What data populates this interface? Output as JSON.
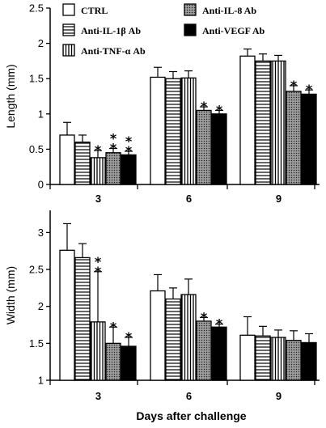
{
  "chart_data": [
    {
      "type": "bar",
      "ylabel": "Length (mm)",
      "xlabel": "",
      "ylim": [
        0,
        2.5
      ],
      "yticks": [
        "0",
        "0.5",
        "1",
        "1.5",
        "2",
        "2.5"
      ],
      "categories": [
        "3",
        "6",
        "9"
      ],
      "series": [
        {
          "name": "CTRL",
          "pattern": "white",
          "values": [
            0.7,
            1.52,
            1.82
          ],
          "errors": [
            0.18,
            0.14,
            0.1
          ]
        },
        {
          "name": "Anti-IL-1β Ab",
          "pattern": "hlines",
          "values": [
            0.6,
            1.5,
            1.75
          ],
          "errors": [
            0.1,
            0.1,
            0.1
          ]
        },
        {
          "name": "Anti-TNF-α Ab",
          "pattern": "vlines",
          "values": [
            0.38,
            1.51,
            1.75
          ],
          "errors": [
            0.1,
            0.1,
            0.08
          ]
        },
        {
          "name": "Anti-IL-8 Ab",
          "pattern": "dots",
          "values": [
            0.45,
            1.05,
            1.32
          ],
          "errors": [
            0.06,
            0.05,
            0.08
          ]
        },
        {
          "name": "Anti-VEGF Ab",
          "pattern": "black",
          "values": [
            0.42,
            1.0,
            1.28
          ],
          "errors": [
            0.05,
            0.05,
            0.06
          ]
        }
      ],
      "significance": [
        {
          "category": 0,
          "series": 2,
          "stars": "*"
        },
        {
          "category": 0,
          "series": 3,
          "stars": "**"
        },
        {
          "category": 0,
          "series": 4,
          "stars": "**"
        },
        {
          "category": 1,
          "series": 3,
          "stars": "*"
        },
        {
          "category": 1,
          "series": 4,
          "stars": "*"
        },
        {
          "category": 2,
          "series": 3,
          "stars": "*"
        },
        {
          "category": 2,
          "series": 4,
          "stars": "*"
        }
      ],
      "legend": "top-left, inside plot"
    },
    {
      "type": "bar",
      "ylabel": "Width (mm)",
      "xlabel": "Days after challenge",
      "ylim": [
        1,
        3.3
      ],
      "yticks": [
        "1",
        "1.5",
        "2",
        "2.5",
        "3"
      ],
      "categories": [
        "3",
        "6",
        "9"
      ],
      "series": [
        {
          "name": "CTRL",
          "pattern": "white",
          "values": [
            2.76,
            2.21,
            1.61
          ],
          "errors": [
            0.36,
            0.22,
            0.25
          ]
        },
        {
          "name": "Anti-IL-1β Ab",
          "pattern": "hlines",
          "values": [
            2.66,
            2.1,
            1.6
          ],
          "errors": [
            0.19,
            0.15,
            0.13
          ]
        },
        {
          "name": "Anti-TNF-α Ab",
          "pattern": "vlines",
          "values": [
            1.79,
            2.16,
            1.58
          ],
          "errors": [
            0.68,
            0.21,
            0.1
          ]
        },
        {
          "name": "Anti-IL-8 Ab",
          "pattern": "dots",
          "values": [
            1.5,
            1.8,
            1.54
          ],
          "errors": [
            0.22,
            0.05,
            0.13
          ]
        },
        {
          "name": "Anti-VEGF Ab",
          "pattern": "black",
          "values": [
            1.46,
            1.72,
            1.51
          ],
          "errors": [
            0.12,
            0.04,
            0.12
          ]
        }
      ],
      "significance": [
        {
          "category": 0,
          "series": 2,
          "stars": "**"
        },
        {
          "category": 0,
          "series": 3,
          "stars": "*"
        },
        {
          "category": 0,
          "series": 4,
          "stars": "*"
        },
        {
          "category": 1,
          "series": 3,
          "stars": "*"
        },
        {
          "category": 1,
          "series": 4,
          "stars": "*"
        }
      ]
    }
  ]
}
